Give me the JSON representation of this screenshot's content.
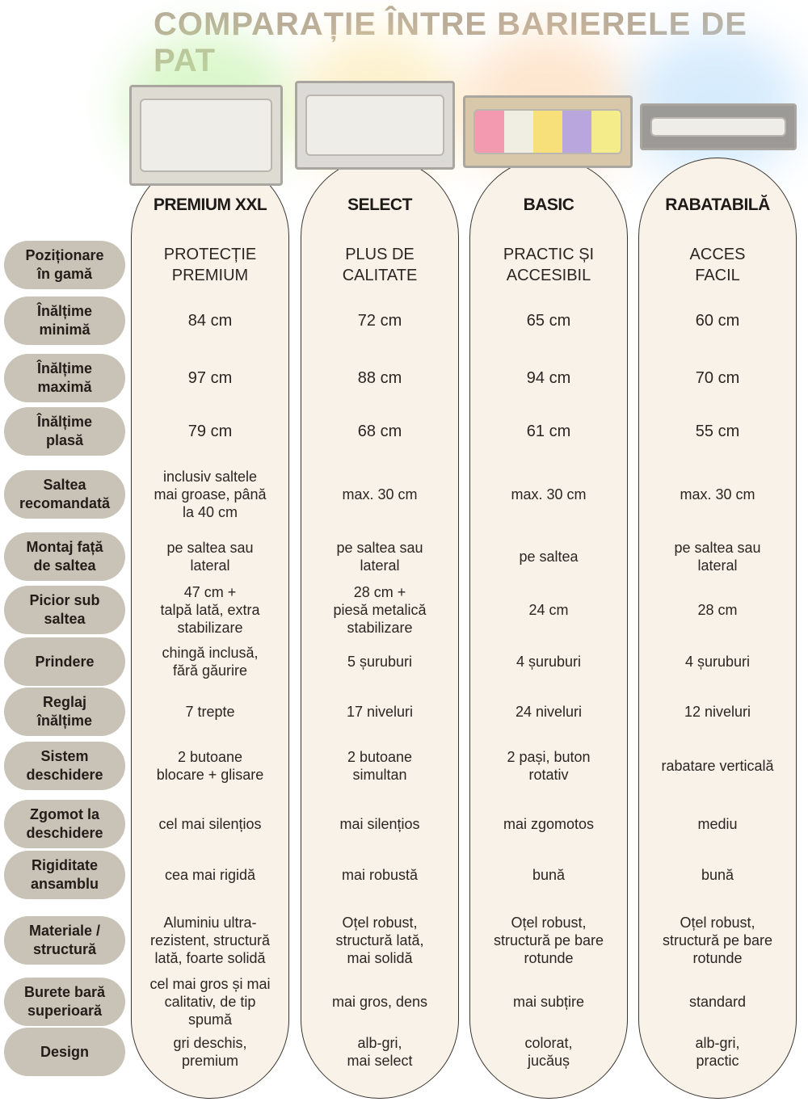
{
  "title": "COMPARAȚIE ÎNTRE BARIERELE DE PAT",
  "colors": {
    "title": "#b9ab98",
    "label_pill": "#c9c2b6",
    "column_bg": "#f8f2e8",
    "border": "#3a3530"
  },
  "products": [
    {
      "name": "PREMIUM XXL",
      "image": "grey bed rail with wave pattern",
      "glow": "#bdf0a0"
    },
    {
      "name": "SELECT",
      "image": "white-grey bed rail",
      "glow": "#fbe6a6"
    },
    {
      "name": "BASIC",
      "image": "colorful beige bed rail",
      "glow": "#fcd2a8"
    },
    {
      "name": "RABATABILĂ",
      "image": "folding grey bed rail",
      "glow": "#b6dcfb"
    }
  ],
  "rows": [
    {
      "label": "Poziționare\nîn gamă",
      "values": [
        "PROTECȚIE\nPREMIUM",
        "PLUS DE\nCALITATE",
        "PRACTIC ȘI\nACCESIBIL",
        "ACCES\nFACIL"
      ]
    },
    {
      "label": "Înălțime\nminimă",
      "values": [
        "84 cm",
        "72 cm",
        "65 cm",
        "60 cm"
      ]
    },
    {
      "label": "Înălțime\nmaximă",
      "values": [
        "97 cm",
        "88 cm",
        "94 cm",
        "70 cm"
      ]
    },
    {
      "label": "Înălțime\nplasă",
      "values": [
        "79 cm",
        "68 cm",
        "61 cm",
        "55 cm"
      ]
    },
    {
      "label": "Saltea\nrecomandată",
      "values": [
        "inclusiv saltele\nmai groase, până\nla 40 cm",
        "max. 30 cm",
        "max. 30 cm",
        "max. 30 cm"
      ]
    },
    {
      "label": "Montaj față\nde saltea",
      "values": [
        "pe saltea sau\nlateral",
        "pe saltea sau\nlateral",
        "pe saltea",
        "pe saltea sau\nlateral"
      ]
    },
    {
      "label": "Picior sub\nsaltea",
      "values": [
        "47 cm +\ntalpă lată, extra\nstabilizare",
        "28 cm +\npiesă metalică\nstabilizare",
        "24 cm",
        "28 cm"
      ]
    },
    {
      "label": "Prindere",
      "values": [
        "chingă inclusă,\nfără găurire",
        "5 șuruburi",
        "4 șuruburi",
        "4 șuruburi"
      ]
    },
    {
      "label": "Reglaj\nînălțime",
      "values": [
        "7 trepte",
        "17 niveluri",
        "24 niveluri",
        "12 niveluri"
      ]
    },
    {
      "label": "Sistem\ndeschidere",
      "values": [
        "2 butoane\nblocare + glisare",
        "2 butoane\nsimultan",
        "2 pași, buton\nrotativ",
        "rabatare verticală"
      ]
    },
    {
      "label": "Zgomot la\ndeschidere",
      "values": [
        "cel mai silențios",
        "mai silențios",
        "mai zgomotos",
        "mediu"
      ]
    },
    {
      "label": "Rigiditate\nansamblu",
      "values": [
        "cea mai rigidă",
        "mai robustă",
        "bună",
        "bună"
      ]
    },
    {
      "label": "Materiale /\nstructură",
      "values": [
        "Aluminiu ultra-\nrezistent, structură\nlată, foarte solidă",
        "Oțel robust,\nstructură lată,\nmai solidă",
        "Oțel robust,\nstructură pe bare\nrotunde",
        "Oțel robust,\nstructură pe bare\nrotunde"
      ]
    },
    {
      "label": "Burete bară\nsuperioară",
      "values": [
        "cel mai gros și mai\ncalitativ, de tip\nspumă",
        "mai gros, dens",
        "mai subțire",
        "standard"
      ]
    },
    {
      "label": "Design",
      "values": [
        "gri deschis,\npremium",
        "alb-gri,\nmai select",
        "colorat,\njucăuș",
        "alb-gri,\npractic"
      ]
    }
  ]
}
